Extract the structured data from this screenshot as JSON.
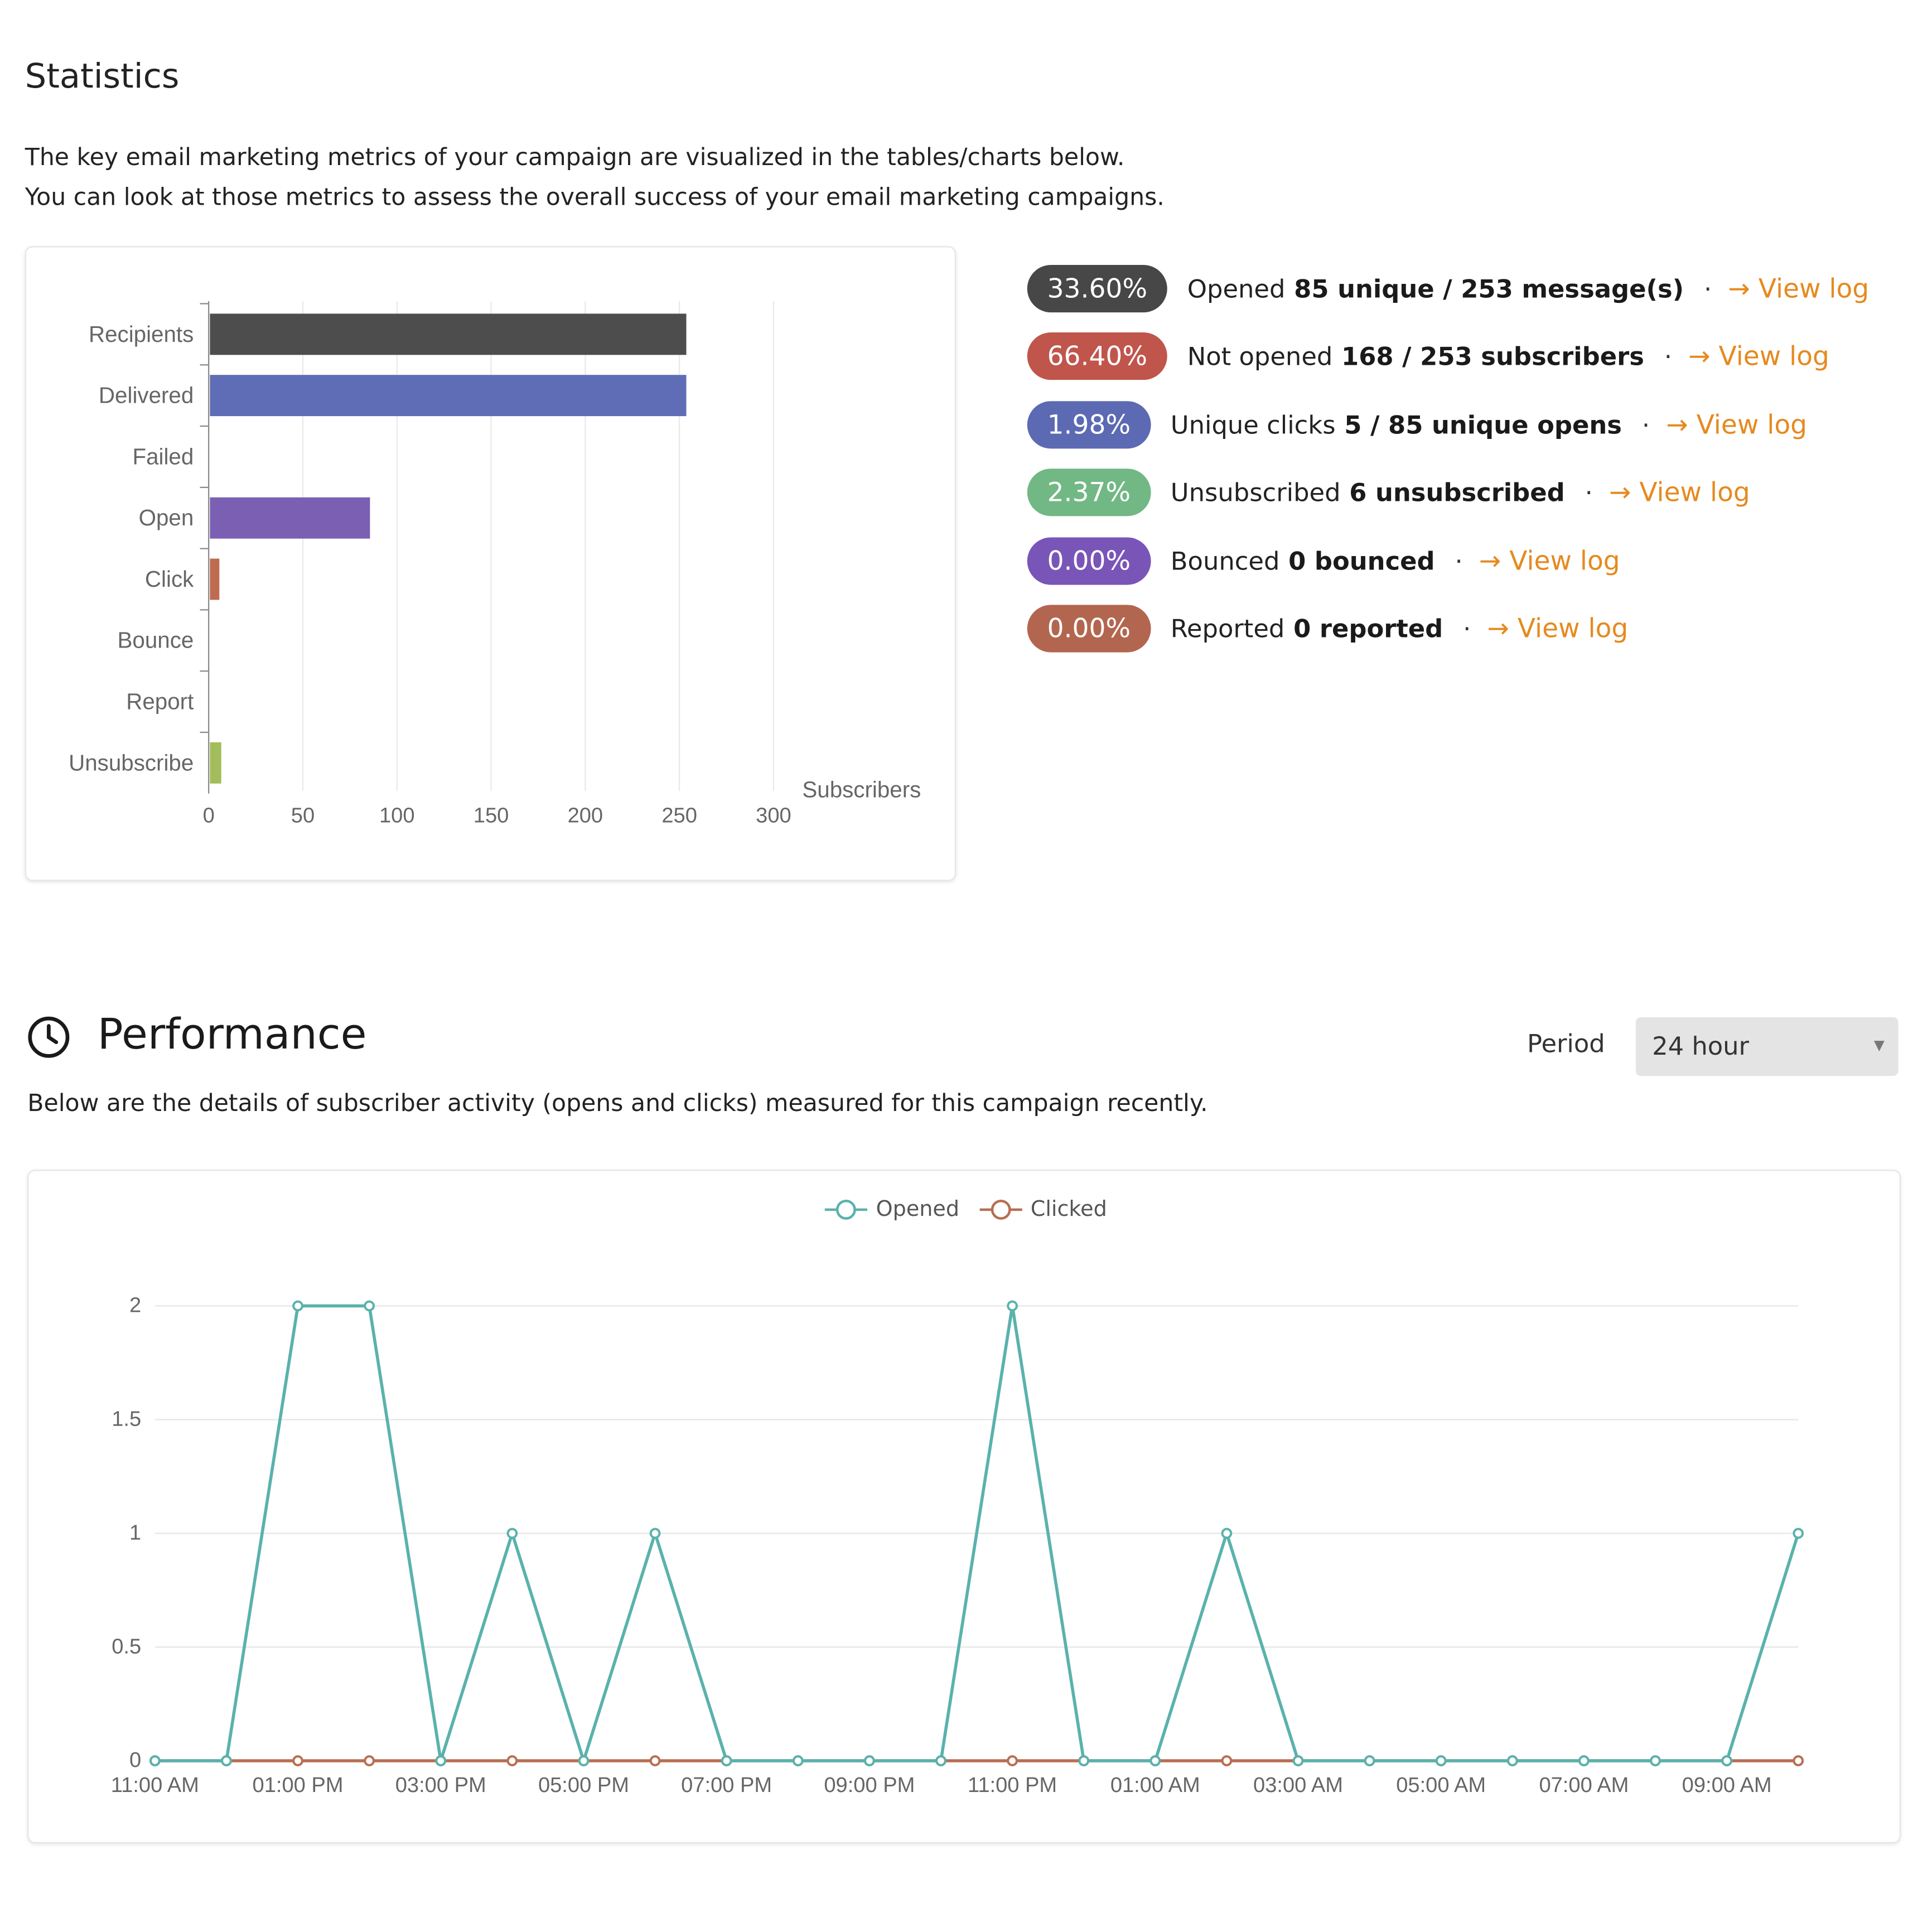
{
  "statistics": {
    "title": "Statistics",
    "description_line1": "The key email marketing metrics of your campaign are visualized in the tables/charts below.",
    "description_line2": "You can look at those metrics to assess the overall success of your email marketing campaigns."
  },
  "metrics": [
    {
      "percent": "33.60%",
      "label": "Opened",
      "value": "85 unique / 253 message(s)",
      "link": "View log",
      "color": "#474747"
    },
    {
      "percent": "66.40%",
      "label": "Not opened",
      "value": "168 / 253 subscribers",
      "link": "View log",
      "color": "#c0554c"
    },
    {
      "percent": "1.98%",
      "label": "Unique clicks",
      "value": "5 / 85 unique opens",
      "link": "View log",
      "color": "#5c6ab3"
    },
    {
      "percent": "2.37%",
      "label": "Unsubscribed",
      "value": "6 unsubscribed",
      "link": "View log",
      "color": "#72b884"
    },
    {
      "percent": "0.00%",
      "label": "Bounced",
      "value": "0 bounced",
      "link": "View log",
      "color": "#7a55b8"
    },
    {
      "percent": "0.00%",
      "label": "Reported",
      "value": "0 reported",
      "link": "View log",
      "color": "#b3664f"
    }
  ],
  "performance": {
    "title": "Performance",
    "icon": "clock-icon",
    "description": "Below are the details of subscriber activity (opens and clicks) measured for this campaign recently.",
    "period_label": "Period",
    "period_value": "24 hour"
  },
  "chart_data": [
    {
      "type": "bar",
      "orientation": "horizontal",
      "categories": [
        "Recipients",
        "Delivered",
        "Failed",
        "Open",
        "Click",
        "Bounce",
        "Report",
        "Unsubscribe"
      ],
      "values": [
        253,
        253,
        0,
        85,
        5,
        0,
        0,
        6
      ],
      "colors": [
        "#4d4d4d",
        "#5e6db5",
        "#c0554c",
        "#7b5fb3",
        "#c06a4f",
        "#8a8a8a",
        "#9a9a9a",
        "#a3bd5a"
      ],
      "xlabel": "Subscribers",
      "xlim": [
        0,
        300
      ],
      "xticks": [
        0,
        50,
        100,
        150,
        200,
        250,
        300
      ],
      "grid": true
    },
    {
      "type": "line",
      "x": [
        "11:00 AM",
        "12:00 PM",
        "01:00 PM",
        "02:00 PM",
        "03:00 PM",
        "04:00 PM",
        "05:00 PM",
        "06:00 PM",
        "07:00 PM",
        "08:00 PM",
        "09:00 PM",
        "10:00 PM",
        "11:00 PM",
        "12:00 AM",
        "01:00 AM",
        "02:00 AM",
        "03:00 AM",
        "04:00 AM",
        "05:00 AM",
        "06:00 AM",
        "07:00 AM",
        "08:00 AM",
        "09:00 AM",
        "10:00 AM"
      ],
      "xtick_labels": [
        "11:00 AM",
        "01:00 PM",
        "03:00 PM",
        "05:00 PM",
        "07:00 PM",
        "09:00 PM",
        "11:00 PM",
        "01:00 AM",
        "03:00 AM",
        "05:00 AM",
        "07:00 AM",
        "09:00 AM"
      ],
      "series": [
        {
          "name": "Opened",
          "color": "#5ab2ac",
          "values": [
            0,
            0,
            2,
            2,
            0,
            1,
            0,
            1,
            0,
            0,
            0,
            0,
            2,
            0,
            0,
            1,
            0,
            0,
            0,
            0,
            0,
            0,
            0,
            1
          ]
        },
        {
          "name": "Clicked",
          "color": "#b86e52",
          "values": [
            0,
            0,
            0,
            0,
            0,
            0,
            0,
            0,
            0,
            0,
            0,
            0,
            0,
            0,
            0,
            0,
            0,
            0,
            0,
            0,
            0,
            0,
            0,
            0
          ]
        }
      ],
      "ylim": [
        0,
        2
      ],
      "yticks": [
        0,
        0.5,
        1,
        1.5,
        2
      ],
      "legend": "top-center",
      "grid": true
    }
  ]
}
